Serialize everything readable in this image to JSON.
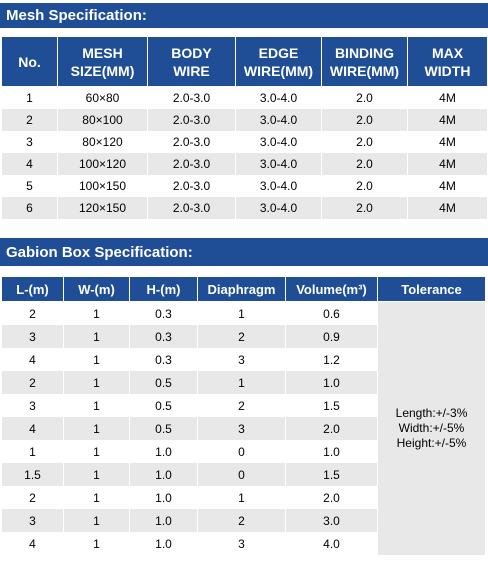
{
  "mesh": {
    "title": "Mesh Specification:",
    "headers": [
      [
        "No."
      ],
      [
        "MESH",
        "SIZE(MM)"
      ],
      [
        "BODY",
        "WIRE"
      ],
      [
        "EDGE",
        "WIRE(MM)"
      ],
      [
        "BINDING",
        "WIRE(MM)"
      ],
      [
        "MAX",
        "WIDTH"
      ]
    ],
    "rows": [
      [
        "1",
        "60×80",
        "2.0-3.0",
        "3.0-4.0",
        "2.0",
        "4M"
      ],
      [
        "2",
        "80×100",
        "2.0-3.0",
        "3.0-4.0",
        "2.0",
        "4M"
      ],
      [
        "3",
        "80×120",
        "2.0-3.0",
        "3.0-4.0",
        "2.0",
        "4M"
      ],
      [
        "4",
        "100×120",
        "2.0-3.0",
        "3.0-4.0",
        "2.0",
        "4M"
      ],
      [
        "5",
        "100×150",
        "2.0-3.0",
        "3.0-4.0",
        "2.0",
        "4M"
      ],
      [
        "6",
        "120×150",
        "2.0-3.0",
        "3.0-4.0",
        "2.0",
        "4M"
      ]
    ]
  },
  "gabion": {
    "title": "Gabion Box Specification:",
    "headers": [
      "L-(m)",
      "W-(m)",
      "H-(m)",
      "Diaphragm",
      "Volume(m³)",
      "Tolerance"
    ],
    "rows": [
      [
        "2",
        "1",
        "0.3",
        "1",
        "0.6"
      ],
      [
        "3",
        "1",
        "0.3",
        "2",
        "0.9"
      ],
      [
        "4",
        "1",
        "0.3",
        "3",
        "1.2"
      ],
      [
        "2",
        "1",
        "0.5",
        "1",
        "1.0"
      ],
      [
        "3",
        "1",
        "0.5",
        "2",
        "1.5"
      ],
      [
        "4",
        "1",
        "0.5",
        "3",
        "2.0"
      ],
      [
        "1",
        "1",
        "1.0",
        "0",
        "1.0"
      ],
      [
        "1.5",
        "1",
        "1.0",
        "0",
        "1.5"
      ],
      [
        "2",
        "1",
        "1.0",
        "1",
        "2.0"
      ],
      [
        "3",
        "1",
        "1.0",
        "2",
        "3.0"
      ],
      [
        "4",
        "1",
        "1.0",
        "3",
        "4.0"
      ]
    ],
    "tolerance": [
      "Length:+/-3%",
      "Width:+/-5%",
      "Height:+/-5%"
    ]
  },
  "colors": {
    "header_bg": "#1f4e96",
    "stripe": "#e8e8e8"
  }
}
